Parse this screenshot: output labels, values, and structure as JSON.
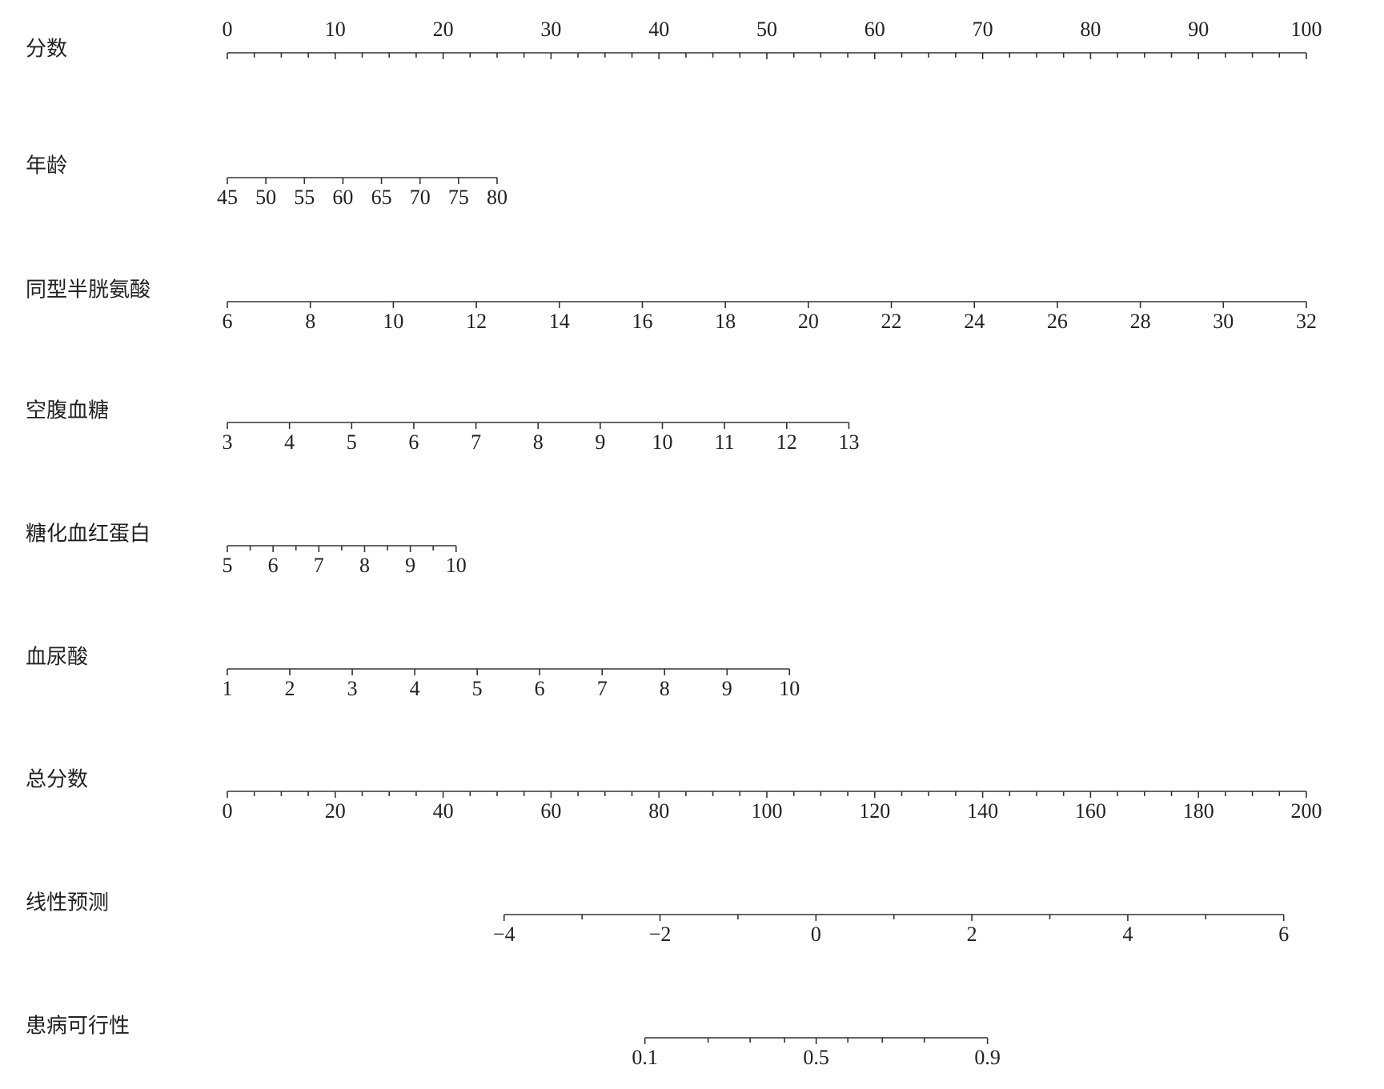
{
  "chart_data": {
    "type": "nomogram",
    "axes": [
      {
        "name": "分数",
        "xlim": [
          0,
          100
        ],
        "points": [
          0,
          100
        ],
        "tick_labels": "top",
        "ticks": [
          0,
          10,
          20,
          30,
          40,
          50,
          60,
          70,
          80,
          90,
          100
        ],
        "minor_ticks": [
          2.5,
          5,
          7.5,
          12.5,
          15,
          17.5,
          22.5,
          25,
          27.5,
          32.5,
          35,
          37.5,
          42.5,
          45,
          47.5,
          52.5,
          55,
          57.5,
          62.5,
          65,
          67.5,
          72.5,
          75,
          77.5,
          82.5,
          85,
          87.5,
          92.5,
          95,
          97.5
        ]
      },
      {
        "name": "年龄",
        "xlim": [
          45,
          80
        ],
        "points": [
          0,
          25
        ],
        "ticks": [
          45,
          50,
          55,
          60,
          65,
          70,
          75,
          80
        ],
        "minor_ticks": []
      },
      {
        "name": "同型半胱氨酸",
        "xlim": [
          6,
          32
        ],
        "points": [
          0,
          100
        ],
        "ticks": [
          6,
          8,
          10,
          12,
          14,
          16,
          18,
          20,
          22,
          24,
          26,
          28,
          30,
          32
        ],
        "minor_ticks": []
      },
      {
        "name": "空腹血糖",
        "xlim": [
          3,
          13
        ],
        "points": [
          0,
          57.6
        ],
        "ticks": [
          3,
          4,
          5,
          6,
          7,
          8,
          9,
          10,
          11,
          12,
          13
        ],
        "minor_ticks": []
      },
      {
        "name": "糖化血红蛋白",
        "xlim": [
          5,
          10
        ],
        "points": [
          0,
          21.2
        ],
        "ticks": [
          5,
          6,
          7,
          8,
          9,
          10
        ],
        "minor_ticks": [
          5.5,
          6.5,
          7.5,
          8.5,
          9.5
        ]
      },
      {
        "name": "血尿酸",
        "xlim": [
          1,
          10
        ],
        "points": [
          0,
          52.1
        ],
        "ticks": [
          1,
          2,
          3,
          4,
          5,
          6,
          7,
          8,
          9,
          10
        ],
        "minor_ticks": []
      },
      {
        "name": "总分数",
        "xlim": [
          0,
          200
        ],
        "points": [
          0,
          100
        ],
        "ticks": [
          0,
          20,
          40,
          60,
          80,
          100,
          120,
          140,
          160,
          180,
          200
        ],
        "minor_ticks": [
          5,
          10,
          15,
          25,
          30,
          35,
          45,
          50,
          55,
          65,
          70,
          75,
          85,
          90,
          95,
          105,
          110,
          115,
          125,
          130,
          135,
          145,
          150,
          155,
          165,
          170,
          175,
          185,
          190,
          195
        ]
      },
      {
        "name": "线性预测",
        "xlim": [
          -4,
          6
        ],
        "points": [
          25.65,
          97.9
        ],
        "ticks": [
          {
            "value": -4,
            "label": "−4"
          },
          {
            "value": -2,
            "label": "−2"
          },
          0,
          2,
          4,
          6
        ],
        "minor_ticks": [
          -3,
          -1,
          1,
          3,
          5
        ]
      },
      {
        "name": "患病可行性",
        "xlim": [
          0.1,
          0.9
        ],
        "points": [
          38.7,
          70.45
        ],
        "scale": "logit",
        "ticks": [
          0.1,
          0.5,
          0.9
        ],
        "minor_ticks": [
          0.2,
          0.3,
          0.4,
          0.6,
          0.7,
          0.8
        ]
      }
    ]
  }
}
